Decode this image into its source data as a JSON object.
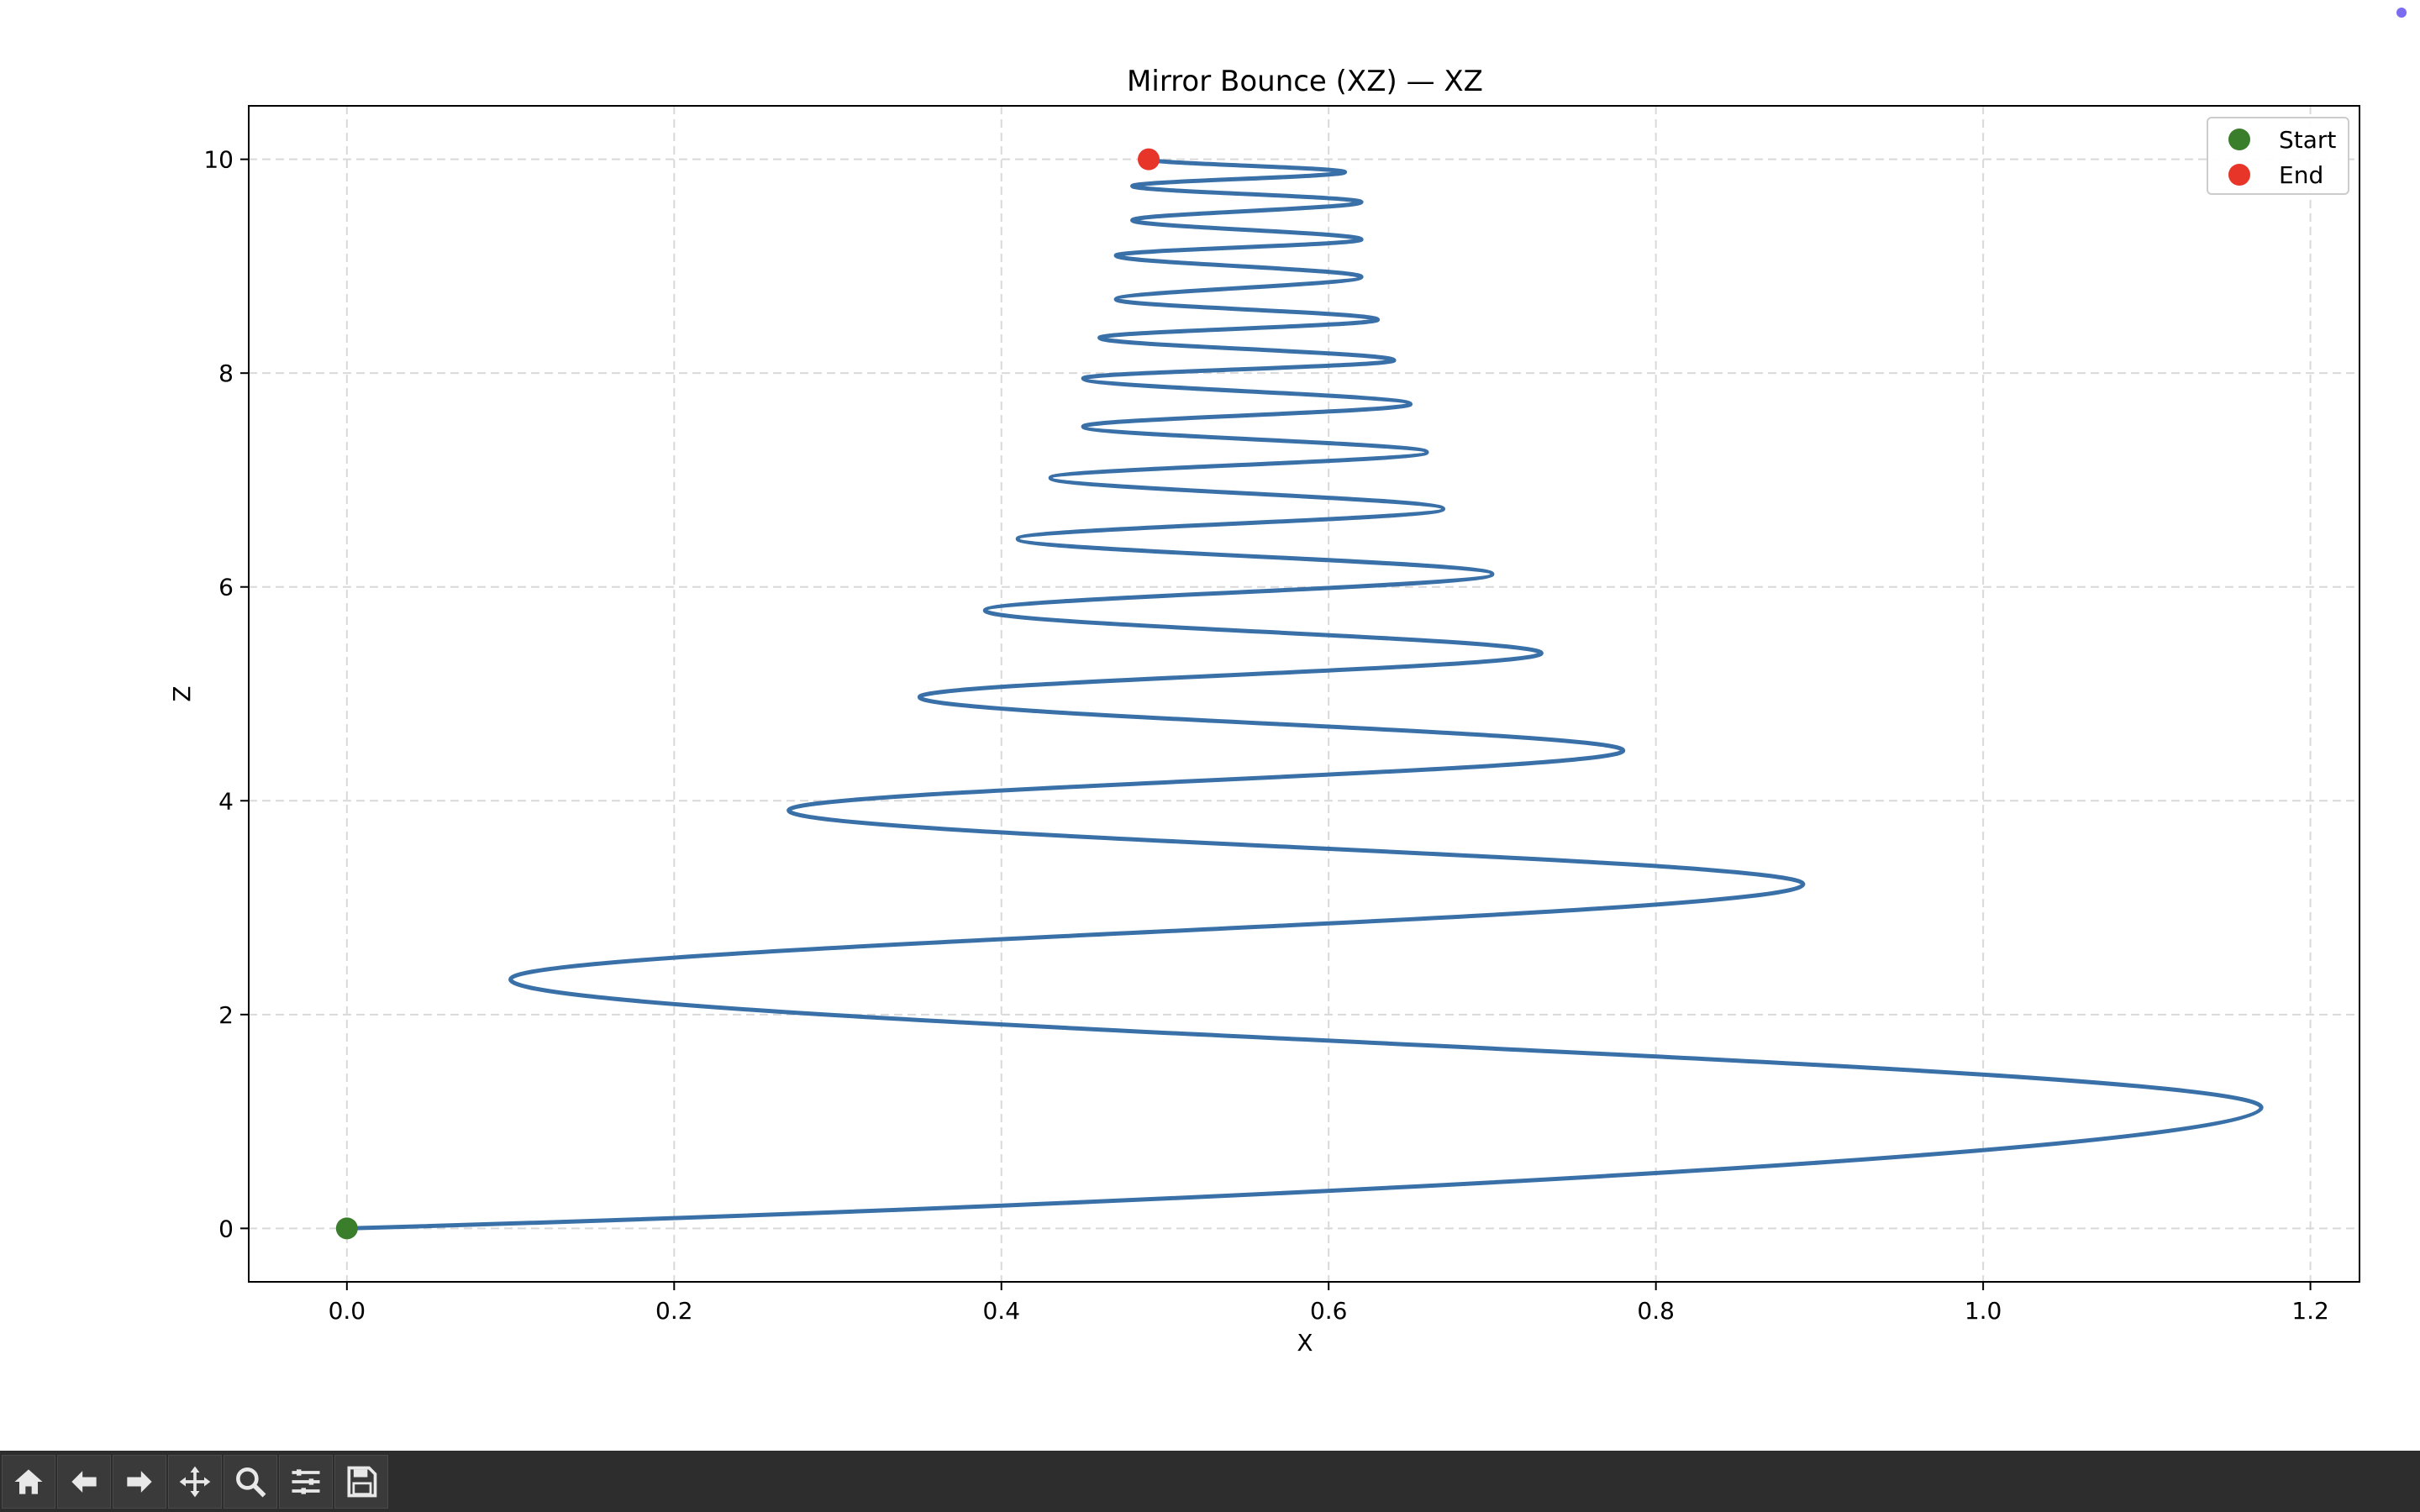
{
  "chart_data": {
    "type": "line",
    "title": "Mirror Bounce (XZ) — XZ",
    "xlabel": "X",
    "ylabel": "Z",
    "xlim": [
      -0.06,
      1.23
    ],
    "ylim": [
      -0.5,
      10.5
    ],
    "xticks": [
      "0.0",
      "0.2",
      "0.4",
      "0.6",
      "0.8",
      "1.0",
      "1.2"
    ],
    "yticks": [
      "0",
      "2",
      "4",
      "6",
      "8",
      "10"
    ],
    "grid": true,
    "legend_position": "top-right",
    "series": [
      {
        "kind": "line",
        "color": "#3a70a8",
        "points": [
          [
            0.0,
            0.0
          ],
          [
            1.17,
            1.13
          ],
          [
            0.1,
            2.33
          ],
          [
            0.89,
            3.22
          ],
          [
            0.27,
            3.91
          ],
          [
            0.78,
            4.47
          ],
          [
            0.35,
            4.97
          ],
          [
            0.73,
            5.38
          ],
          [
            0.39,
            5.78
          ],
          [
            0.7,
            6.12
          ],
          [
            0.41,
            6.45
          ],
          [
            0.67,
            6.73
          ],
          [
            0.43,
            7.02
          ],
          [
            0.66,
            7.26
          ],
          [
            0.45,
            7.5
          ],
          [
            0.65,
            7.71
          ],
          [
            0.45,
            7.95
          ],
          [
            0.64,
            8.12
          ],
          [
            0.46,
            8.33
          ],
          [
            0.63,
            8.5
          ],
          [
            0.47,
            8.69
          ],
          [
            0.62,
            8.9
          ],
          [
            0.47,
            9.1
          ],
          [
            0.62,
            9.25
          ],
          [
            0.48,
            9.43
          ],
          [
            0.62,
            9.6
          ],
          [
            0.48,
            9.75
          ],
          [
            0.61,
            9.88
          ],
          [
            0.49,
            10.0
          ]
        ]
      },
      {
        "name": "Start",
        "kind": "scatter",
        "color": "#3a7d2a",
        "points": [
          [
            0.0,
            0.0
          ]
        ]
      },
      {
        "name": "End",
        "kind": "scatter",
        "color": "#e8352a",
        "points": [
          [
            0.49,
            10.0
          ]
        ]
      }
    ]
  },
  "legend": {
    "start_label": "Start",
    "end_label": "End"
  },
  "colors": {
    "corner_dot": "#7b6cf0",
    "toolbar_bg": "#2d2d2d"
  },
  "toolbar": {
    "buttons": [
      "home-icon",
      "back-arrow-icon",
      "forward-arrow-icon",
      "pan-icon",
      "zoom-icon",
      "configure-subplots-icon",
      "save-icon"
    ]
  }
}
